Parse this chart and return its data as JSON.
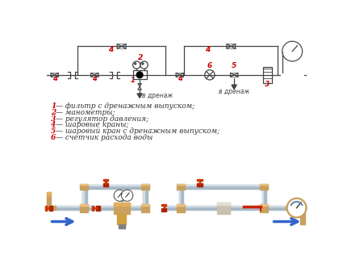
{
  "legend_lines": [
    "1 — фильтр с дренажным выпуском;",
    "2 — манометры;",
    "3 — регулятор давления;",
    "4 — шаровые краны;",
    "5 — шаровый кран с дренажным выпуском;",
    "6 — счетчик расхода воды"
  ],
  "red": "#cc0000",
  "dark": "#444444",
  "gray": "#888888",
  "blue": "#3366cc",
  "brass": "#c8a060",
  "brass_dark": "#9a7030",
  "pipe_gray": "#a8b4bc",
  "pipe_light": "#d0dde4"
}
